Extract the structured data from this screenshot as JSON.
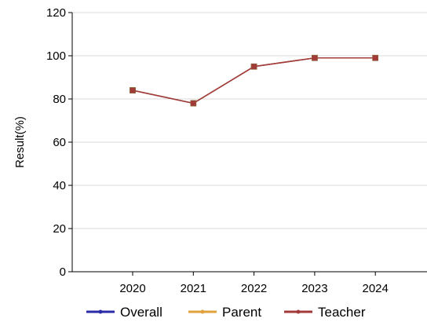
{
  "chart_data": {
    "type": "line",
    "categories": [
      "2020",
      "2021",
      "2022",
      "2023",
      "2024"
    ],
    "ylabel": "Result(%)",
    "xlabel": "",
    "ylim": [
      0,
      120
    ],
    "yticks": [
      0,
      20,
      40,
      60,
      80,
      100,
      120
    ],
    "grid": "horizontal",
    "legend_position": "bottom",
    "series": [
      {
        "name": "Overall",
        "color": "#2b2ba8",
        "values": [
          84,
          78,
          95,
          99,
          99
        ]
      },
      {
        "name": "Parent",
        "color": "#e0a23a",
        "values": [
          84,
          78,
          95,
          99,
          99
        ]
      },
      {
        "name": "Teacher",
        "color": "#a23a3a",
        "values": [
          84,
          78,
          95,
          99,
          99
        ]
      }
    ]
  }
}
